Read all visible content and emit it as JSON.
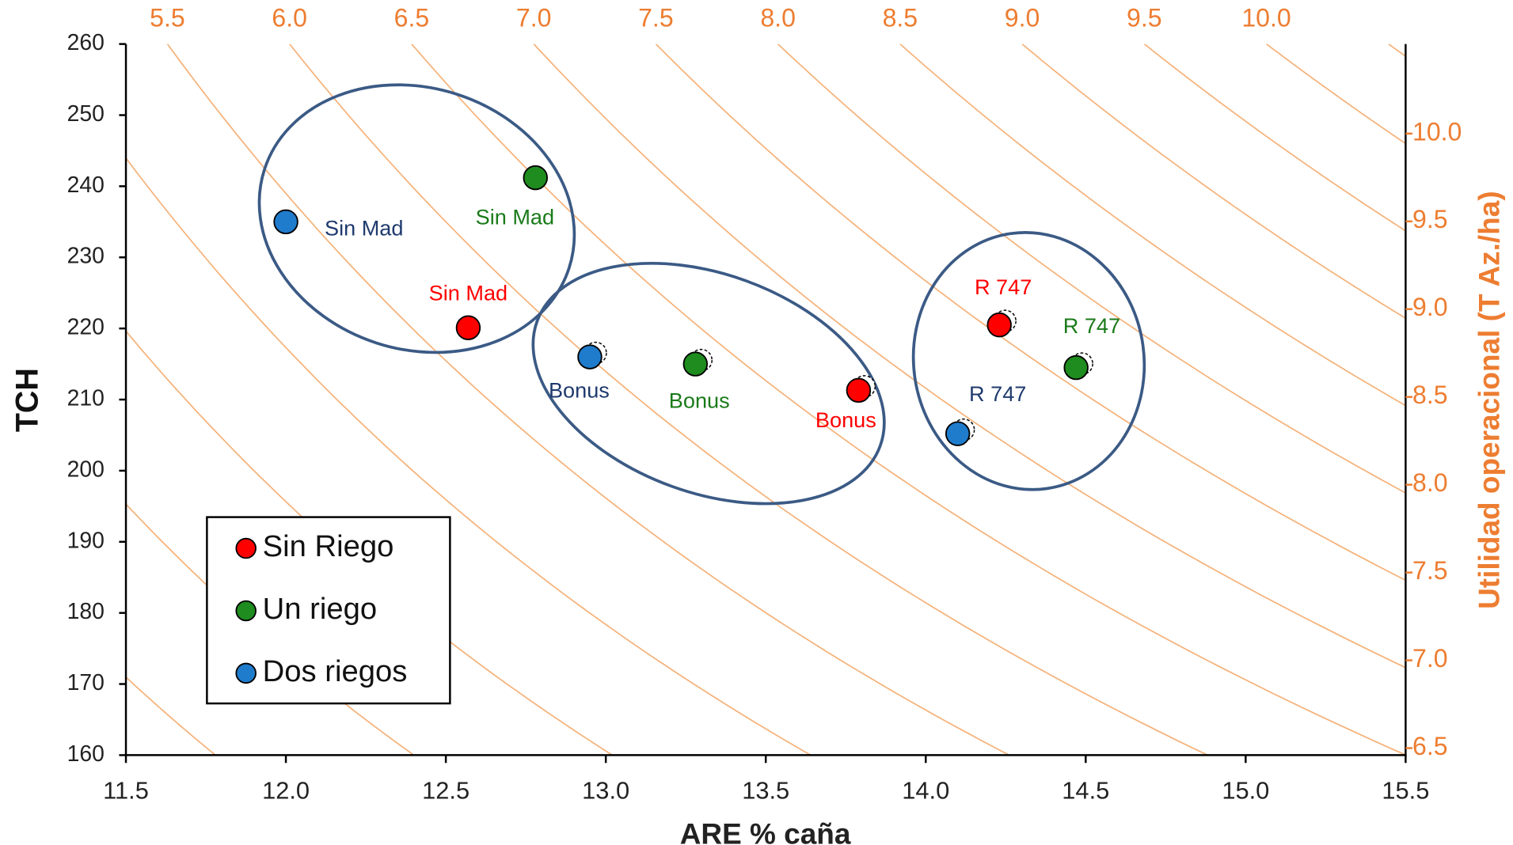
{
  "chart_data": {
    "type": "scatter",
    "xlabel": "ARE % caña",
    "ylabel": "TCH",
    "y2label": "Utilidad operacional (T Az./ha)",
    "xlim": [
      11.5,
      15.5
    ],
    "xticks": [
      11.5,
      {
        "value": 12,
        "label": "12.0"
      },
      12.5,
      {
        "value": 13,
        "label": "13.0"
      },
      13.5,
      {
        "value": 14,
        "label": "14.0"
      },
      14.5,
      {
        "value": 15,
        "label": "15.0"
      },
      15.5
    ],
    "ylim": [
      160,
      260
    ],
    "yticks": [
      160,
      170,
      180,
      190,
      200,
      210,
      220,
      230,
      240,
      250,
      260
    ],
    "x2lim": [
      5.33,
      10.57
    ],
    "x2ticks": [
      5.5,
      {
        "value": 6,
        "label": "6.0"
      },
      6.5,
      {
        "value": 7,
        "label": "7.0"
      },
      7.5,
      {
        "value": 8,
        "label": "8.0"
      },
      8.5,
      {
        "value": 9,
        "label": "9.0"
      },
      9.5,
      {
        "value": 10,
        "label": "10.0"
      }
    ],
    "y2lim": [
      6.46,
      10.51
    ],
    "y2ticks": [
      6.5,
      {
        "value": 7,
        "label": "7.0"
      },
      7.5,
      {
        "value": 8,
        "label": "8.0"
      },
      8.5,
      {
        "value": 9,
        "label": "9.0"
      },
      9.5,
      {
        "value": 10,
        "label": "10.0"
      }
    ],
    "secondary_color": "#ed7d31",
    "legend": "lower left",
    "series": [
      {
        "name": "Sin Riego",
        "color": "#ff0000",
        "label_color": "#ff0000",
        "x": [
          12.57,
          13.79,
          14.23
        ],
        "values": [
          220.1,
          211.3,
          220.5
        ],
        "point_labels": [
          "Sin Mad",
          "Bonus",
          "R 747"
        ]
      },
      {
        "name": "Un riego",
        "color": "#1e8c1e",
        "label_color": "#1a7a1a",
        "x": [
          12.78,
          13.28,
          14.47
        ],
        "values": [
          241.2,
          215,
          214.5
        ],
        "point_labels": [
          "Sin Mad",
          "Bonus",
          "R 747"
        ]
      },
      {
        "name": "Dos riegos",
        "color": "#1f7ccc",
        "label_color": "#1f3a6e",
        "x": [
          12.0,
          12.95,
          14.1
        ],
        "values": [
          235,
          216,
          205.2
        ],
        "point_labels": [
          "Sin Mad",
          "Bonus",
          "R 747"
        ]
      }
    ]
  }
}
